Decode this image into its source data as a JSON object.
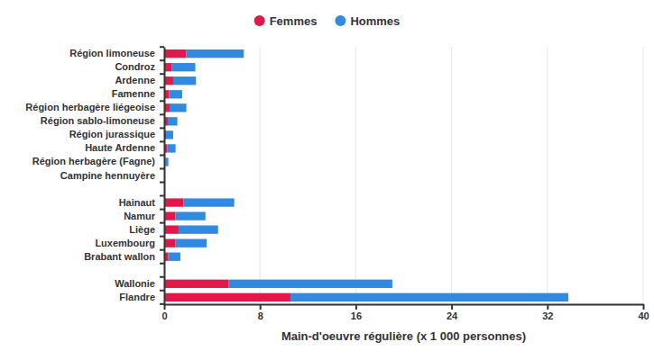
{
  "chart_data": {
    "type": "bar",
    "orientation": "horizontal",
    "stacked": true,
    "grid": true,
    "legend": "top",
    "xlabel": "Main-d'oeuvre régulière (x 1 000 personnes)",
    "categories": [
      "Région limoneuse",
      "Condroz",
      "Ardenne",
      "Famenne",
      "Région herbagère liégeoise",
      "Région sablo-limoneuse",
      "Région jurassique",
      "Haute Ardenne",
      "Région herbagère (Fagne)",
      "Campine hennuyère",
      null,
      "Hainaut",
      "Namur",
      "Liège",
      "Luxembourg",
      "Brabant wallon",
      null,
      "Wallonie",
      "Flandre"
    ],
    "series": [
      {
        "name": "Femmes",
        "color": "#e0194a",
        "values": [
          1.85,
          0.65,
          0.75,
          0.4,
          0.45,
          0.3,
          0.15,
          0.25,
          0.1,
          0.02,
          null,
          1.6,
          0.95,
          1.2,
          0.95,
          0.35,
          null,
          5.4,
          10.55
        ]
      },
      {
        "name": "Hommes",
        "color": "#3189e0",
        "values": [
          4.8,
          1.95,
          1.9,
          1.1,
          1.4,
          0.8,
          0.6,
          0.7,
          0.25,
          0.05,
          null,
          4.25,
          2.5,
          3.3,
          2.6,
          1.0,
          null,
          13.65,
          23.2
        ]
      }
    ],
    "xlim": [
      0,
      40
    ],
    "xticks": [
      0,
      8,
      16,
      24,
      32,
      40
    ]
  }
}
